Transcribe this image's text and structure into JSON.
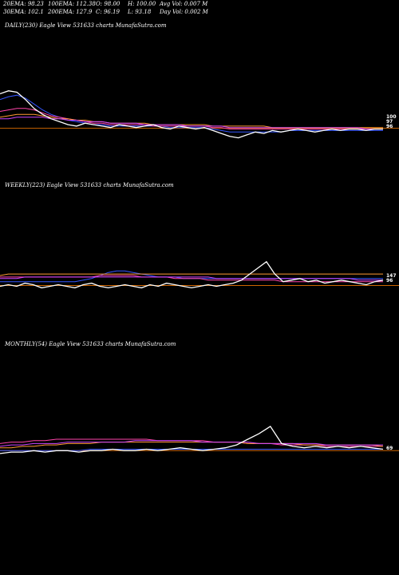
{
  "header": {
    "stats": [
      {
        "label": "20EMA: 98.23"
      },
      {
        "label": "100EMA: 112.38"
      },
      {
        "label": "O: 98.00"
      },
      {
        "label": "H: 100.00"
      },
      {
        "label": "Avg Vol: 0.007  M"
      },
      {
        "label": "30EMA: 102.1"
      },
      {
        "label": "200EMA: 127.9"
      },
      {
        "label": "C: 96.19"
      },
      {
        "label": "L: 93.18"
      },
      {
        "label": "Day Vol: 0.002  M"
      }
    ]
  },
  "colors": {
    "price": "#ffffff",
    "ema_blue": "#3355ff",
    "ema_pink": "#ff44aa",
    "ema_orange": "#ff9933",
    "ema_purple": "#cc44ff",
    "ema_magenta": "#ff2266",
    "ema_cyan": "#66ccff",
    "baseline": "#cc6600"
  },
  "chart_data": [
    {
      "type": "line",
      "label": "DAILY(230) Eagle  View  531633 charts MunafaSutra.com",
      "tick_labels": [
        "100",
        "97",
        "96"
      ],
      "series": [
        {
          "role": "price",
          "values": [
            120,
            122,
            121,
            116,
            110,
            106,
            103,
            101,
            99,
            98,
            100,
            99,
            98,
            97,
            99,
            98,
            97,
            98,
            99,
            97,
            96,
            98,
            97,
            96,
            97,
            95,
            93,
            91,
            90,
            92,
            94,
            93,
            95,
            94,
            95,
            96,
            95,
            94,
            95,
            96,
            95,
            96,
            96,
            95,
            96,
            96
          ]
        },
        {
          "role": "ema_blue",
          "values": [
            116,
            118,
            119,
            117,
            113,
            109,
            106,
            104,
            102,
            101,
            100,
            99,
            99,
            98,
            98,
            98,
            98,
            98,
            98,
            98,
            97,
            97,
            97,
            97,
            97,
            96,
            95,
            94,
            94,
            94,
            94,
            94,
            94,
            94,
            95,
            95,
            95,
            95,
            95,
            95,
            95,
            95,
            95,
            95,
            95,
            95
          ]
        },
        {
          "role": "ema_pink",
          "values": [
            108,
            109,
            110,
            110,
            109,
            107,
            105,
            104,
            103,
            102,
            101,
            100,
            100,
            99,
            99,
            99,
            99,
            99,
            98,
            98,
            98,
            98,
            98,
            98,
            98,
            97,
            97,
            96,
            96,
            96,
            96,
            96,
            96,
            96,
            96,
            96,
            96,
            96,
            96,
            96,
            96,
            96,
            96,
            96,
            96,
            96
          ]
        },
        {
          "role": "ema_orange",
          "values": [
            104,
            105,
            106,
            106,
            106,
            105,
            104,
            103,
            103,
            102,
            102,
            101,
            101,
            100,
            100,
            100,
            100,
            100,
            99,
            99,
            99,
            99,
            99,
            99,
            99,
            98,
            98,
            98,
            98,
            98,
            98,
            98,
            97,
            97,
            97,
            97,
            97,
            97,
            97,
            97,
            97,
            97,
            97,
            97,
            97,
            97
          ]
        },
        {
          "role": "ema_purple",
          "values": [
            103,
            103,
            104,
            104,
            104,
            104,
            103,
            103,
            102,
            102,
            101,
            101,
            101,
            100,
            100,
            100,
            100,
            99,
            99,
            99,
            99,
            99,
            98,
            98,
            98,
            98,
            98,
            97,
            97,
            97,
            97,
            97,
            97,
            97,
            97,
            97,
            97,
            97,
            97,
            97,
            97,
            97,
            97,
            96,
            96,
            96
          ]
        }
      ],
      "baseline": 96.5
    },
    {
      "type": "line",
      "label": "WEEKLY(223) Eagle  View  531633 charts MunafaSutra.com",
      "tick_labels": [
        "147",
        "96"
      ],
      "series": [
        {
          "role": "price",
          "values": [
            96,
            97,
            96,
            98,
            97,
            95,
            96,
            97,
            96,
            95,
            97,
            98,
            96,
            95,
            96,
            97,
            96,
            95,
            97,
            96,
            98,
            97,
            96,
            95,
            96,
            97,
            96,
            97,
            98,
            100,
            104,
            108,
            112,
            104,
            99,
            100,
            101,
            99,
            100,
            98,
            99,
            100,
            99,
            98,
            97,
            99,
            100
          ]
        },
        {
          "role": "ema_blue",
          "values": [
            99,
            99,
            99,
            99,
            99,
            99,
            99,
            99,
            99,
            99,
            100,
            101,
            103,
            105,
            106,
            106,
            105,
            104,
            103,
            102,
            102,
            102,
            101,
            101,
            101,
            101,
            101,
            101,
            101,
            101,
            101,
            101,
            101,
            101,
            101,
            101,
            101,
            101,
            101,
            101,
            101,
            101,
            101,
            101,
            101,
            101,
            101
          ]
        },
        {
          "role": "ema_pink",
          "values": [
            102,
            102,
            102,
            102,
            102,
            102,
            102,
            102,
            102,
            102,
            102,
            102,
            103,
            103,
            103,
            103,
            103,
            102,
            102,
            102,
            102,
            101,
            101,
            101,
            101,
            100,
            100,
            100,
            100,
            100,
            100,
            100,
            100,
            100,
            99,
            99,
            99,
            99,
            99,
            99,
            99,
            99,
            99,
            99,
            99,
            99,
            99
          ]
        },
        {
          "role": "ema_orange",
          "values": [
            103,
            104,
            104,
            104,
            104,
            104,
            104,
            104,
            104,
            104,
            104,
            104,
            104,
            104,
            104,
            104,
            104,
            104,
            104,
            104,
            104,
            104,
            104,
            104,
            104,
            104,
            104,
            104,
            104,
            104,
            104,
            104,
            104,
            104,
            104,
            104,
            104,
            104,
            104,
            104,
            104,
            104,
            104,
            104,
            104,
            104,
            104
          ]
        },
        {
          "role": "ema_purple",
          "values": [
            101,
            101,
            101,
            102,
            102,
            102,
            102,
            102,
            102,
            102,
            102,
            102,
            102,
            102,
            102,
            102,
            102,
            102,
            102,
            102,
            102,
            102,
            102,
            102,
            102,
            102,
            101,
            101,
            101,
            101,
            101,
            101,
            101,
            101,
            101,
            101,
            101,
            101,
            101,
            101,
            101,
            101,
            101,
            100,
            100,
            100,
            100
          ]
        }
      ],
      "baseline": 96.5
    },
    {
      "type": "line",
      "label": "MONTHLY(54) Eagle  View  531633 charts MunafaSutra.com",
      "tick_labels": [
        "69"
      ],
      "series": [
        {
          "role": "price",
          "values": [
            94,
            95,
            95,
            96,
            95,
            96,
            96,
            95,
            96,
            96,
            97,
            96,
            96,
            97,
            96,
            97,
            98,
            97,
            96,
            97,
            98,
            100,
            104,
            108,
            113,
            101,
            99,
            98,
            99,
            98,
            99,
            98,
            99,
            98,
            97
          ]
        },
        {
          "role": "ema_blue",
          "values": [
            96,
            96,
            96,
            96,
            96,
            96,
            96,
            96,
            97,
            97,
            97,
            97,
            97,
            97,
            97,
            97,
            97,
            97,
            97,
            97,
            97,
            97,
            97,
            97,
            97,
            97,
            97,
            97,
            97,
            97,
            97,
            97,
            97,
            97,
            97
          ]
        },
        {
          "role": "ema_pink",
          "values": [
            101,
            102,
            102,
            103,
            103,
            104,
            104,
            104,
            104,
            104,
            104,
            104,
            104,
            104,
            103,
            103,
            103,
            103,
            103,
            102,
            102,
            102,
            101,
            101,
            101,
            100,
            100,
            100,
            100,
            99,
            99,
            99,
            99,
            99,
            99
          ]
        },
        {
          "role": "ema_orange",
          "values": [
            98,
            98,
            99,
            99,
            100,
            100,
            101,
            101,
            101,
            102,
            102,
            102,
            102,
            102,
            102,
            102,
            102,
            102,
            102,
            102,
            102,
            102,
            101,
            101,
            101,
            101,
            101,
            100,
            100,
            100,
            100,
            100,
            100,
            100,
            99
          ]
        },
        {
          "role": "ema_purple",
          "values": [
            99,
            100,
            100,
            101,
            101,
            101,
            102,
            102,
            102,
            102,
            102,
            102,
            103,
            103,
            103,
            103,
            103,
            103,
            102,
            102,
            102,
            102,
            102,
            101,
            101,
            101,
            101,
            101,
            101,
            100,
            100,
            100,
            100,
            100,
            100
          ]
        }
      ],
      "baseline": 96
    }
  ]
}
